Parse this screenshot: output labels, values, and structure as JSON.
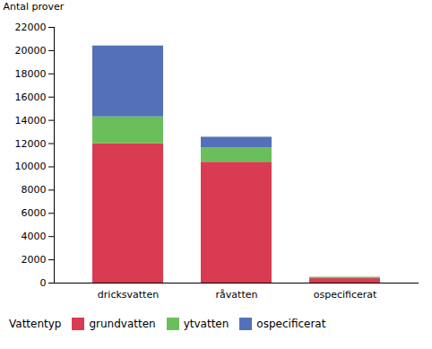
{
  "chart_data": {
    "type": "bar",
    "stacked": true,
    "categories": [
      "dricksvatten",
      "råvatten",
      "ospecificerat"
    ],
    "series": [
      {
        "name": "grundvatten",
        "color": "#D93B52",
        "values": [
          12000,
          10400,
          380
        ]
      },
      {
        "name": "ytvatten",
        "color": "#6BBF5A",
        "values": [
          2300,
          1250,
          120
        ]
      },
      {
        "name": "ospecificerat",
        "color": "#5470B8",
        "values": [
          6100,
          900,
          0
        ]
      }
    ],
    "ylabel": "Antal prover",
    "ylim": [
      0,
      22000
    ],
    "yticks": [
      0,
      2000,
      4000,
      6000,
      8000,
      10000,
      12000,
      14000,
      16000,
      18000,
      20000,
      22000
    ],
    "legend_title": "Vattentyp",
    "legend": "bottom",
    "grid": false
  }
}
